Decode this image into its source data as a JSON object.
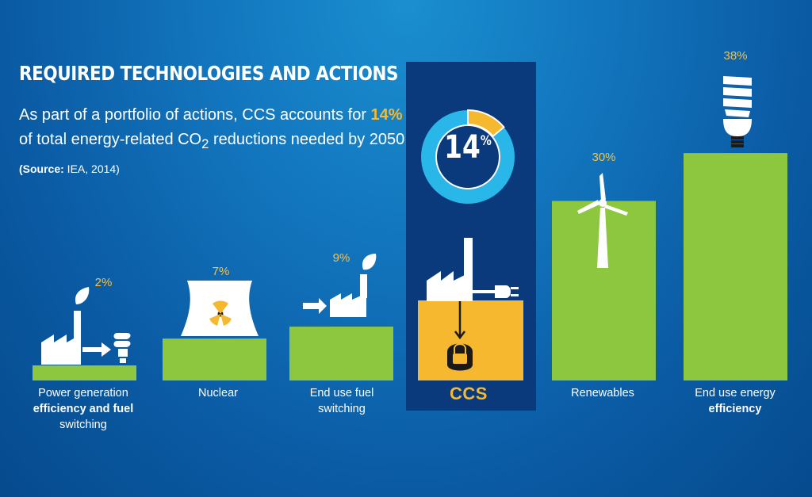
{
  "header": {
    "title": "REQUIRED TECHNOLOGIES AND ACTIONS",
    "subtitle_part1": "As part of a portfolio of actions, CCS accounts for ",
    "subtitle_highlight": "14%",
    "subtitle_part2": " of total energy-related CO",
    "subtitle_sub": "2",
    "subtitle_part3": " reductions needed by 2050. ",
    "source_label": "(Source:",
    "source_text": " IEA, 2014)"
  },
  "colors": {
    "bar_green": "#8dc63f",
    "ccs_yellow": "#f5b82e",
    "value_yellow": "#f2c24a",
    "donut_blue": "#29b6e8",
    "ccs_panel": "#0c3f86"
  },
  "chart_data": {
    "type": "bar",
    "unit": "%",
    "categories": [
      "Power generation efficiency and fuel switching",
      "Nuclear",
      "End use fuel switching",
      "CCS",
      "Renewables",
      "End use energy efficiency"
    ],
    "values": [
      2,
      7,
      9,
      14,
      30,
      38
    ],
    "highlighted_category": "CCS",
    "ccs_share_donut": {
      "value": 14,
      "label": "14",
      "unit": "%"
    },
    "labels": {
      "cat0_line1": "Power generation",
      "cat0_line2": "efficiency and fuel",
      "cat0_line3": "switching",
      "cat1": "Nuclear",
      "cat2_line1": "End use fuel",
      "cat2_line2": "switching",
      "cat3": "CCS",
      "cat4": "Renewables",
      "cat5_line1": "End use energy",
      "cat5_line2": "efficiency"
    },
    "value_labels": [
      "2%",
      "7%",
      "9%",
      "",
      "30%",
      "38%"
    ],
    "icons": [
      "factory-bulb-icon",
      "nuclear-plant-icon",
      "factory-leaf-icon",
      "factory-plug-lock-icon",
      "wind-turbine-icon",
      "cfl-bulb-icon"
    ]
  }
}
